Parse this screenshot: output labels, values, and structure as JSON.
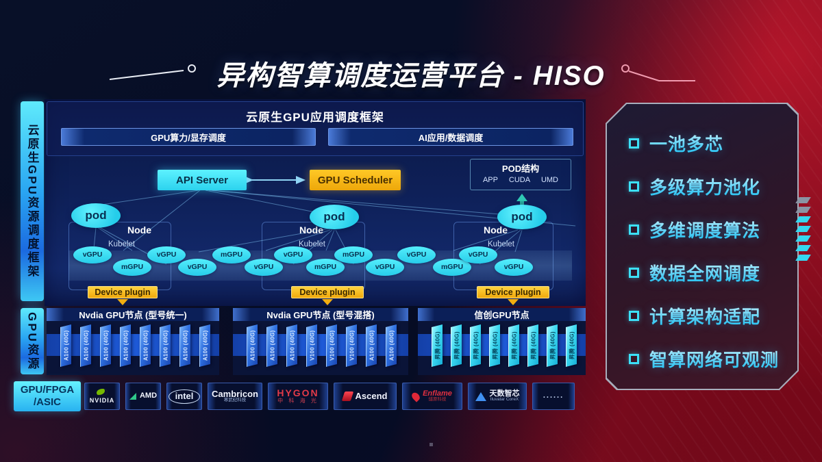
{
  "title": "异构智算调度运营平台 - HISO",
  "sidebar": {
    "top_label": "云原生GPU资源调度框架",
    "bottom_label": "GPU资源"
  },
  "app_framework": {
    "title": "云原生GPU应用调度框架",
    "bars": [
      "GPU算力/显存调度",
      "AI应用/数据调度"
    ]
  },
  "scheduler": {
    "api_server": "API Server",
    "gpu_scheduler": "GPU Scheduler",
    "pod_box": {
      "title": "POD结构",
      "items": [
        "APP",
        "CUDA",
        "UMD"
      ]
    }
  },
  "clusters": [
    {
      "pod": "pod",
      "node": "Node",
      "kubelet": "Kubelet",
      "ovals": [
        "vGPU",
        "mGPU",
        "vGPU"
      ],
      "plugin": "Device plugin"
    },
    {
      "pod": "pod",
      "node": "Node",
      "kubelet": "Kubelet",
      "ovals": [
        "vGPU",
        "vGPU",
        "mGPU",
        "mGPU"
      ],
      "plugin": "Device plugin"
    },
    {
      "pod": "pod",
      "node": "Node",
      "kubelet": "Kubelet",
      "ovals": [
        "mGPU",
        "vGPU",
        "vGPU"
      ],
      "plugin": "Device plugin"
    }
  ],
  "between_ovals": [
    [
      "vGPU",
      "mGPU"
    ],
    [
      "vGPU",
      "vGPU"
    ]
  ],
  "gpu_sections": [
    {
      "header": "Nvdia GPU节点 (型号统一)",
      "cards": [
        "A100 (40G)",
        "A100 (40G)",
        "A100 (40G)",
        "A100 (40G)",
        "A100 (40G)",
        "A100 (40G)",
        "A100 (40G)",
        "A100 (40G)"
      ]
    },
    {
      "header": "Nvdia GPU节点 (型号混搭)",
      "cards": [
        "A100 (40G)",
        "A100 (40G)",
        "A100 (40G)",
        "V100 (40G)",
        "V100 (40G)",
        "V100 (40G)",
        "A100 (40G)",
        "A100 (40G)"
      ]
    },
    {
      "header": "信创GPU节点",
      "cards": [
        "昇腾 (40G)",
        "昇腾 (40G)",
        "昇腾 (40G)",
        "昇腾 (40G)",
        "昇腾 (40G)",
        "昇腾 (40G)",
        "昇腾 (40G)",
        "昇腾 (40G)"
      ]
    }
  ],
  "vendor_bar": {
    "label_line1": "GPU/FPGA",
    "label_line2": "/ASIC",
    "vendors": [
      {
        "name": "NVIDIA",
        "logo": "nvidia",
        "width": 52
      },
      {
        "name": "AMD",
        "logo": "amd",
        "width": 52
      },
      {
        "name": "intel",
        "logo": "intel",
        "width": 52
      },
      {
        "name": "Cambricon",
        "sub": "寒武纪科技",
        "logo": "cambricon",
        "width": 80
      },
      {
        "name": "HYGON",
        "sub": "中 科 海 光",
        "logo": "hygon",
        "width": 88
      },
      {
        "name": "Ascend",
        "logo": "ascend",
        "width": 92
      },
      {
        "name": "Enflame",
        "sub": "燧原科技",
        "logo": "enflame",
        "width": 88
      },
      {
        "name": "天数智芯",
        "sub": "Iluvatar CoreX",
        "logo": "iluvatar",
        "width": 86
      },
      {
        "name": "......",
        "logo": "dots",
        "width": 62
      }
    ]
  },
  "features": [
    "一池多芯",
    "多级算力池化",
    "多维调度算法",
    "数据全网调度",
    "计算架构适配",
    "智算网络可观测"
  ],
  "colors": {
    "accent_cyan": "#3fe0f8",
    "accent_amber": "#f6b612",
    "card_blue": "#2e6fe0",
    "card_cyan": "#35dcf0",
    "background_red": "#8a0e20",
    "nvidia_green": "#76b900",
    "logo_red": "#e03040",
    "iluvatar_blue": "#3a8af0"
  }
}
